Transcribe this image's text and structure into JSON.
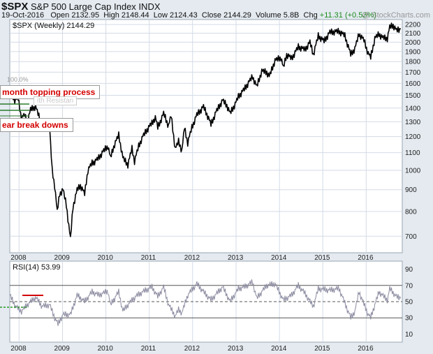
{
  "header": {
    "symbol": "$SPX",
    "name": "S&P 500 Large Cap Index",
    "exchange": "INDX",
    "date": "19-Oct-2016",
    "open_label": "Open",
    "open": "2132.95",
    "high_label": "High",
    "high": "2148.44",
    "low_label": "Low",
    "low": "2124.43",
    "close_label": "Close",
    "close": "2144.29",
    "volume_label": "Volume",
    "volume": "5.8B",
    "chg_label": "Chg",
    "chg": "+11.31 (+0.53%)",
    "credit": "@ StockCharts.com"
  },
  "colors": {
    "background": "#e4eaf0",
    "plot": "#ffffff",
    "grid": "#d3dbe6",
    "price": "#000000",
    "rsi": "#8a8aa0",
    "callout_text": "#d40000",
    "pct_line": "#2a7a2a"
  },
  "annotations": {
    "pct_label": "100.0%",
    "callout1": "month topping process",
    "callout2": "ear break downs",
    "hidden_text": "ith Resistan"
  },
  "chart_data": [
    {
      "type": "line",
      "legend": "$SPX (Weekly) 2144.29",
      "scale": "log",
      "ylim": [
        640,
        2260
      ],
      "xlim": [
        "2007-10-15",
        "2016-10-31"
      ],
      "yticks": [
        700,
        800,
        900,
        1000,
        1100,
        1200,
        1300,
        1400,
        1500,
        1600,
        1700,
        1800,
        1900,
        2000,
        2100,
        2200
      ],
      "xticks": [
        "2008",
        "2009",
        "2010",
        "2011",
        "2012",
        "2013",
        "2014",
        "2015",
        "2016"
      ],
      "grid": true,
      "x": [
        "2007-10-15",
        "2007-11-26",
        "2007-12-24",
        "2008-01-21",
        "2008-02-18",
        "2008-03-10",
        "2008-04-07",
        "2008-05-19",
        "2008-06-16",
        "2008-07-14",
        "2008-08-18",
        "2008-09-15",
        "2008-10-06",
        "2008-10-27",
        "2008-11-17",
        "2008-12-08",
        "2009-01-05",
        "2009-02-02",
        "2009-02-23",
        "2009-03-09",
        "2009-03-30",
        "2009-05-04",
        "2009-06-01",
        "2009-07-06",
        "2009-08-03",
        "2009-09-07",
        "2009-10-05",
        "2009-11-02",
        "2009-12-07",
        "2010-01-18",
        "2010-02-08",
        "2010-03-15",
        "2010-04-19",
        "2010-05-24",
        "2010-07-05",
        "2010-08-09",
        "2010-08-30",
        "2010-10-04",
        "2010-11-08",
        "2010-12-13",
        "2011-01-24",
        "2011-02-21",
        "2011-03-14",
        "2011-05-02",
        "2011-06-13",
        "2011-07-04",
        "2011-08-08",
        "2011-09-05",
        "2011-10-03",
        "2011-10-24",
        "2011-11-21",
        "2011-12-26",
        "2012-02-06",
        "2012-04-02",
        "2012-05-07",
        "2012-06-04",
        "2012-07-16",
        "2012-09-10",
        "2012-10-15",
        "2012-11-12",
        "2012-12-24",
        "2013-01-21",
        "2013-03-11",
        "2013-05-20",
        "2013-06-24",
        "2013-08-05",
        "2013-09-16",
        "2013-10-07",
        "2013-11-25",
        "2014-01-13",
        "2014-02-03",
        "2014-03-03",
        "2014-04-14",
        "2014-06-09",
        "2014-08-04",
        "2014-09-15",
        "2014-10-13",
        "2014-11-24",
        "2015-01-12",
        "2015-03-02",
        "2015-05-18",
        "2015-07-06",
        "2015-08-24",
        "2015-09-28",
        "2015-11-02",
        "2015-12-14",
        "2016-01-18",
        "2016-02-08",
        "2016-03-14",
        "2016-04-18",
        "2016-05-16",
        "2016-06-27",
        "2016-07-18",
        "2016-08-15",
        "2016-09-12",
        "2016-10-17"
      ],
      "y": [
        1540,
        1460,
        1475,
        1325,
        1350,
        1290,
        1390,
        1410,
        1340,
        1230,
        1300,
        1250,
        1000,
        920,
        800,
        880,
        900,
        830,
        740,
        690,
        820,
        900,
        920,
        880,
        1000,
        1040,
        1050,
        1070,
        1105,
        1140,
        1070,
        1150,
        1210,
        1070,
        1030,
        1125,
        1050,
        1140,
        1200,
        1245,
        1290,
        1330,
        1260,
        1360,
        1270,
        1345,
        1120,
        1170,
        1110,
        1260,
        1160,
        1260,
        1350,
        1410,
        1340,
        1280,
        1370,
        1460,
        1420,
        1360,
        1430,
        1490,
        1550,
        1660,
        1570,
        1710,
        1700,
        1660,
        1810,
        1840,
        1740,
        1870,
        1830,
        1950,
        1920,
        2000,
        1870,
        2070,
        2010,
        2110,
        2120,
        2070,
        1870,
        1930,
        2090,
        2020,
        1880,
        1840,
        2040,
        2090,
        2050,
        2040,
        2170,
        2190,
        2130,
        2144
      ]
    },
    {
      "type": "line",
      "legend": "RSI(14) 53.99",
      "ylim": [
        0,
        100
      ],
      "yticks": [
        10,
        30,
        50,
        70,
        90
      ],
      "reference_lines": [
        30,
        50,
        70
      ],
      "xticks": [
        "2008",
        "2009",
        "2010",
        "2011",
        "2012",
        "2013",
        "2014",
        "2015",
        "2016"
      ],
      "x": [
        "2007-10-15",
        "2007-12-03",
        "2008-01-21",
        "2008-03-10",
        "2008-05-19",
        "2008-07-14",
        "2008-09-15",
        "2008-10-27",
        "2008-11-24",
        "2009-01-05",
        "2009-03-09",
        "2009-05-04",
        "2009-07-06",
        "2009-09-07",
        "2009-11-02",
        "2010-01-18",
        "2010-02-08",
        "2010-04-19",
        "2010-05-24",
        "2010-07-05",
        "2010-09-06",
        "2010-11-08",
        "2011-01-24",
        "2011-03-14",
        "2011-05-02",
        "2011-06-13",
        "2011-08-08",
        "2011-09-05",
        "2011-10-03",
        "2011-11-21",
        "2012-02-06",
        "2012-04-02",
        "2012-06-04",
        "2012-09-10",
        "2012-11-12",
        "2013-01-21",
        "2013-03-11",
        "2013-05-20",
        "2013-06-24",
        "2013-09-16",
        "2013-11-25",
        "2014-02-03",
        "2014-04-14",
        "2014-06-09",
        "2014-08-04",
        "2014-10-13",
        "2014-11-24",
        "2015-03-02",
        "2015-05-18",
        "2015-08-24",
        "2015-09-28",
        "2015-11-02",
        "2016-01-18",
        "2016-02-08",
        "2016-04-18",
        "2016-06-27",
        "2016-07-18",
        "2016-09-12",
        "2016-10-17"
      ],
      "y": [
        58,
        44,
        38,
        46,
        55,
        44,
        46,
        30,
        22,
        34,
        34,
        58,
        50,
        62,
        58,
        63,
        46,
        62,
        38,
        46,
        56,
        62,
        68,
        56,
        68,
        46,
        32,
        40,
        36,
        58,
        72,
        62,
        52,
        68,
        50,
        66,
        68,
        74,
        54,
        70,
        72,
        52,
        58,
        70,
        60,
        44,
        66,
        64,
        66,
        30,
        38,
        62,
        34,
        30,
        62,
        52,
        66,
        56,
        54
      ]
    }
  ]
}
